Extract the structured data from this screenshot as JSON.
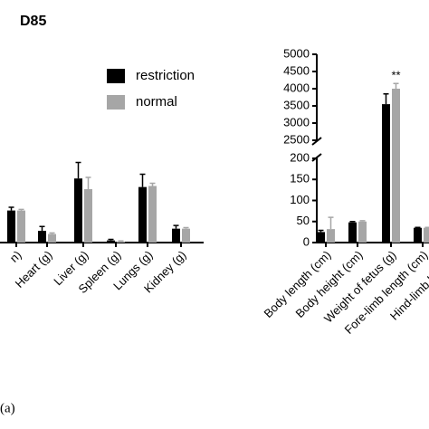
{
  "chart_data": [
    {
      "type": "bar",
      "title": "D85",
      "categories": [
        "n)",
        "Heart (g)",
        "Liver (g)",
        "Spleen (g)",
        "Lungs (g)",
        "Kidney (g)"
      ],
      "series": [
        {
          "name": "restriction",
          "color": "#000000",
          "values": [
            30,
            11,
            60,
            2,
            52,
            13
          ],
          "errors": [
            3,
            4,
            15,
            1,
            12,
            3
          ]
        },
        {
          "name": "normal",
          "color": "#a6a6a6",
          "values": [
            30,
            8,
            50,
            1,
            53,
            13
          ],
          "errors": [
            1,
            1,
            11,
            0.5,
            2.5,
            1
          ]
        }
      ],
      "ylim": [
        0,
        100
      ],
      "legend": "top-right"
    },
    {
      "type": "bar",
      "categories": [
        "Body length (cm)",
        "Body height (cm)",
        "Weight of fetus (g)",
        "Fore-limb length (cm)",
        "Hind-limb length ("
      ],
      "series": [
        {
          "name": "restriction",
          "color": "#000000",
          "values": [
            25,
            48,
            3550,
            35,
            null
          ],
          "errors": [
            4,
            2,
            300,
            1,
            null
          ]
        },
        {
          "name": "normal",
          "color": "#a6a6a6",
          "values": [
            32,
            50,
            4000,
            35,
            null
          ],
          "errors": [
            28,
            2,
            150,
            1,
            null
          ]
        }
      ],
      "ylim": [
        0,
        5000
      ],
      "axis_break": [
        200,
        2500
      ],
      "yticks": [
        0,
        50,
        100,
        150,
        200,
        2500,
        3000,
        3500,
        4000,
        4500,
        5000
      ],
      "annotations": [
        {
          "text": "**",
          "category": 2,
          "series": 1
        }
      ]
    },
    {
      "type": "caption",
      "text": "(a)"
    }
  ]
}
